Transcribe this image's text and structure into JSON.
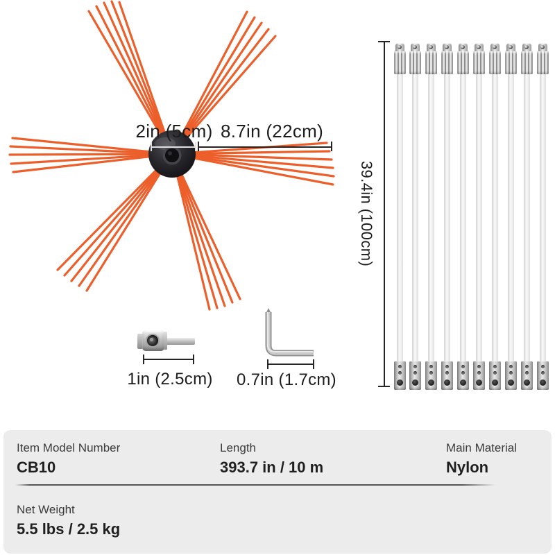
{
  "colors": {
    "bristle": "#ed5f2a",
    "hub": "#232329",
    "dimension": "#242424",
    "dimension_light": "#e0e0e0",
    "metal": "#b5b5b5",
    "panel_bg": "#ececec",
    "label_text": "#3b3b3b",
    "value_text": "#1f1f1f",
    "page_bg": "#ffffff"
  },
  "brush": {
    "hub_dimension": "2in (5cm)",
    "bristle_dimension": "8.7in (22cm)",
    "tuft_count": 6
  },
  "rods": {
    "count": 10,
    "length_dimension": "39.4in (100cm)"
  },
  "accessories": {
    "adapter_dimension": "1in (2.5cm)",
    "allen_key_dimension": "0.7in (1.7cm)"
  },
  "specs": {
    "row1": [
      {
        "label": "Item Model Number",
        "value": "CB10"
      },
      {
        "label": "Length",
        "value": "393.7 in / 10 m"
      },
      {
        "label": "Main Material",
        "value": "Nylon"
      }
    ],
    "row2": [
      {
        "label": "Net Weight",
        "value": "5.5 lbs / 2.5 kg"
      }
    ]
  }
}
